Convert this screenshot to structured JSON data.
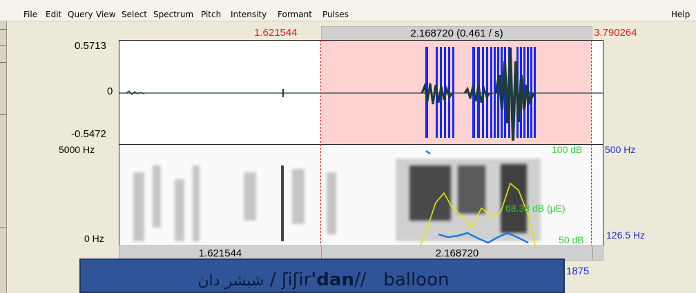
{
  "menu": {
    "items": [
      "File",
      "Edit",
      "Query",
      "View",
      "Select",
      "Spectrum",
      "Pitch",
      "Intensity",
      "Formant",
      "Pulses"
    ],
    "help": "Help"
  },
  "time_bar": {
    "cursor_left": "1.621544",
    "selection": "2.168720 (0.461 / s)",
    "cursor_right": "3.790264"
  },
  "waveform": {
    "max": "0.5713",
    "zero": "0",
    "min": "-0.5472"
  },
  "spectrogram": {
    "top_freq": "5000 Hz",
    "bottom_freq": "0 Hz",
    "intensity_top": "100 dB",
    "pitch_top": "500 Hz",
    "intensity_mid": "68.38 dB (μE)",
    "intensity_bottom": "50 dB",
    "pitch_bottom": "126.5 Hz"
  },
  "bottom_bar": {
    "left": "1.621544",
    "right": "2.168720",
    "side": "1875"
  },
  "caption": {
    "arabic": "شبشر دان",
    "sep1": "/",
    "ipa_pre": "ʃiʃir",
    "ipa_bold": "'dan",
    "ipa_end": "//",
    "english": "balloon"
  },
  "colors": {
    "red": "#e02020",
    "blue": "#2030d0",
    "green": "#33cc33",
    "selection": "#ffd2d2",
    "caption_bg": "#2f5598"
  }
}
